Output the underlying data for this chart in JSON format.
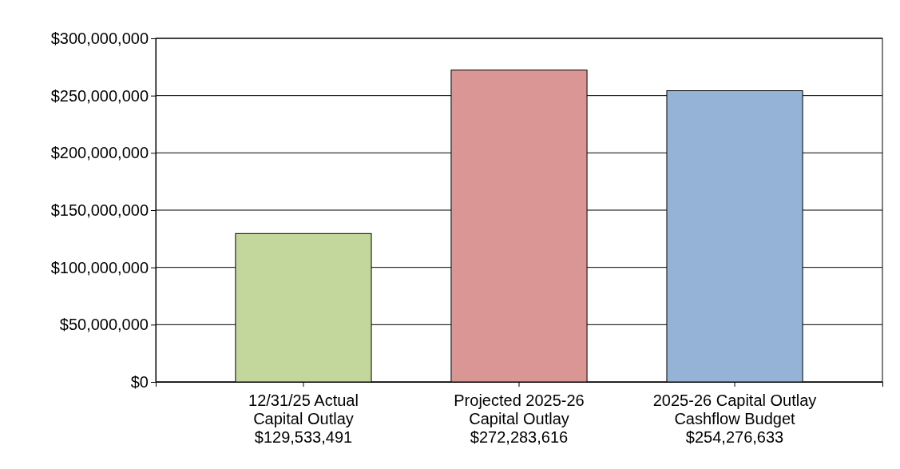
{
  "chart_data": {
    "type": "bar",
    "categories": [
      "12/31/25 Actual\nCapital Outlay",
      "Projected 2025-26\nCapital Outlay",
      "2025-26 Capital Outlay\nCashflow Budget"
    ],
    "values": [
      129533491,
      272283616,
      254276633
    ],
    "colors": [
      "#c3d69b",
      "#d99694",
      "#95b3d7"
    ],
    "value_labels": [
      "$129,533,491",
      "$272,283,616",
      "$254,276,633"
    ],
    "ylim": [
      0,
      300000000
    ],
    "yticks": [
      {
        "value": 0,
        "label": "$0"
      },
      {
        "value": 50000000,
        "label": "$50,000,000"
      },
      {
        "value": 100000000,
        "label": "$100,000,000"
      },
      {
        "value": 150000000,
        "label": "$150,000,000"
      },
      {
        "value": 200000000,
        "label": "$200,000,000"
      },
      {
        "value": 250000000,
        "label": "$250,000,000"
      },
      {
        "value": 300000000,
        "label": "$300,000,000"
      }
    ],
    "grid": "y"
  }
}
